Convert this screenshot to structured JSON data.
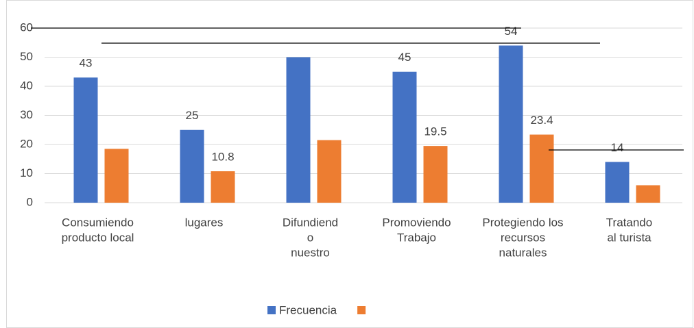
{
  "chart_data": {
    "type": "bar",
    "categories": [
      [
        "Consumiendo",
        "producto local"
      ],
      [
        "lugares"
      ],
      [
        "Difundiend",
        "o",
        "nuestro"
      ],
      [
        "Promoviendo",
        "Trabajo"
      ],
      [
        "Protegiendo los",
        "recursos",
        "naturales"
      ],
      [
        "Tratando",
        "al turista"
      ]
    ],
    "series": [
      {
        "name": "Frecuencia",
        "color": "#4472c4",
        "values": [
          43,
          25,
          50,
          45,
          54,
          14
        ],
        "value_labels": [
          "43",
          "25",
          null,
          "45",
          "54",
          "14"
        ]
      },
      {
        "color": "#ed7d31",
        "values": [
          18.5,
          10.8,
          21.5,
          19.5,
          23.4,
          6
        ],
        "value_labels": [
          null,
          "10.8",
          null,
          "19.5",
          "23.4",
          null
        ]
      }
    ],
    "ylim": [
      0,
      60
    ],
    "yticks": [
      0,
      10,
      20,
      30,
      40,
      50,
      60
    ],
    "grid": true,
    "legend": "bottom"
  }
}
